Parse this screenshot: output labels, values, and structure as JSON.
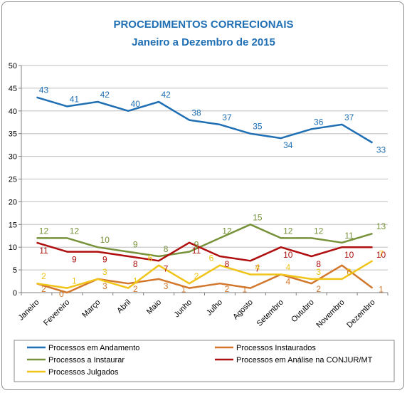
{
  "chart_data": {
    "type": "line",
    "title": "PROCEDIMENTOS CORRECIONAIS",
    "subtitle": "Janeiro a Dezembro de 2015",
    "xlabel": "",
    "ylabel": "",
    "ylim": [
      0,
      50
    ],
    "yticks": [
      "0",
      "5",
      "10",
      "15",
      "20",
      "25",
      "30",
      "35",
      "40",
      "45",
      "50"
    ],
    "grid": true,
    "legend_position": "bottom",
    "categories": [
      "Janeiro",
      "Fevereiro",
      "Março",
      "Abril",
      "Maio",
      "Junho",
      "Julho",
      "Agosto",
      "Setembro",
      "Outubro",
      "Novembro",
      "Dezembro"
    ],
    "series": [
      {
        "name": "Processos em Andamento",
        "color": "#1f6fb5",
        "values": [
          43,
          41,
          42,
          40,
          42,
          38,
          37,
          35,
          34,
          36,
          37,
          33
        ]
      },
      {
        "name": "Processos Instaurados",
        "color": "#d2772b",
        "values": [
          2,
          0,
          3,
          2,
          3,
          1,
          2,
          1,
          4,
          2,
          6,
          1
        ]
      },
      {
        "name": "Processos a Instaurar",
        "color": "#77923a",
        "values": [
          12,
          12,
          10,
          9,
          8,
          9,
          12,
          15,
          12,
          12,
          11,
          13
        ]
      },
      {
        "name": "Processos em Análise na CONJUR/MT",
        "color": "#b00f0f",
        "values": [
          11,
          9,
          9,
          8,
          7,
          11,
          8,
          7,
          10,
          8,
          10,
          10
        ]
      },
      {
        "name": "Processos Julgados",
        "color": "#f0c419",
        "values": [
          2,
          1,
          3,
          1,
          6,
          2,
          6,
          4,
          4,
          3,
          3,
          7
        ]
      }
    ]
  }
}
